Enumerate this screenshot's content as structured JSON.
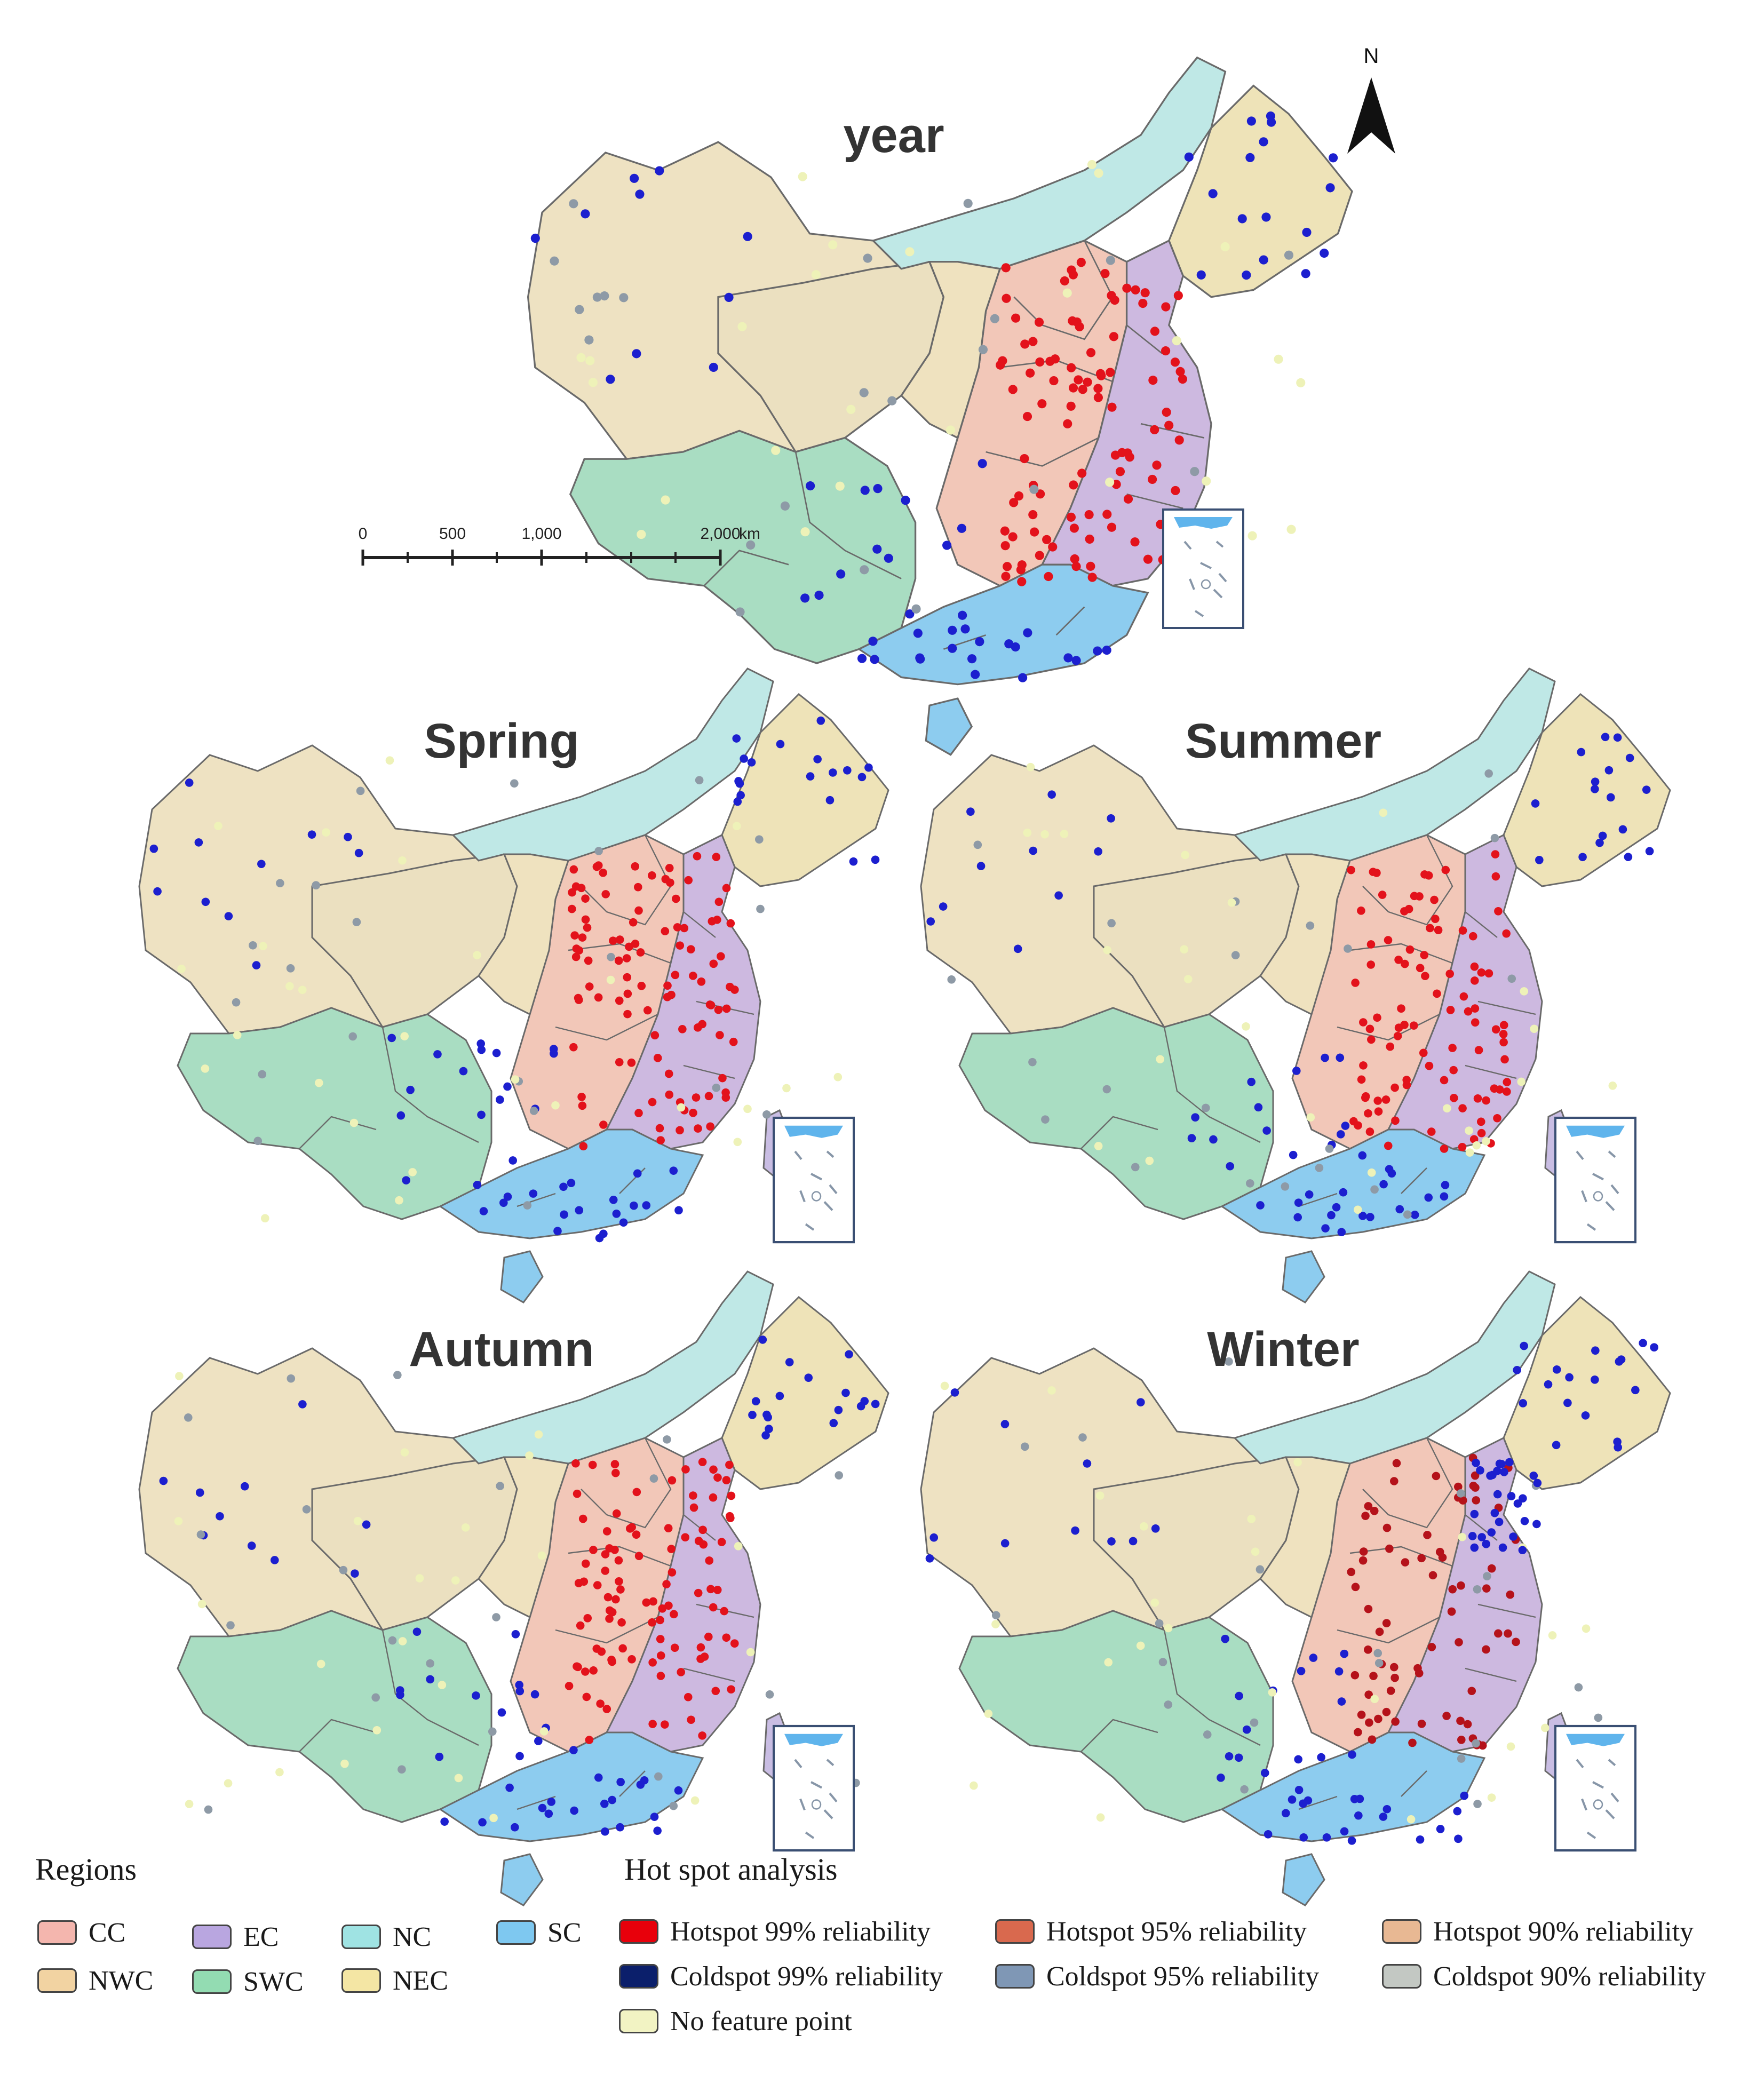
{
  "panels": [
    {
      "title": "year",
      "hot": 0.85,
      "cold": 0.55,
      "winter": false
    },
    {
      "title": "Spring",
      "hot": 0.85,
      "cold": 0.6,
      "winter": false
    },
    {
      "title": "Summer",
      "hot": 0.8,
      "cold": 0.55,
      "winter": false
    },
    {
      "title": "Autumn",
      "hot": 0.85,
      "cold": 0.55,
      "winter": false
    },
    {
      "title": "Winter",
      "hot": 0.6,
      "cold": 0.6,
      "winter": true
    }
  ],
  "north_arrow": {
    "label": "N"
  },
  "scale_bar": {
    "labels": [
      "0",
      "500",
      "1,000",
      "2,000",
      "km"
    ]
  },
  "legend": {
    "regions_title": "Regions",
    "regions": [
      {
        "code": "CC",
        "label": "CC",
        "color": "#f4b6ae"
      },
      {
        "code": "EC",
        "label": "EC",
        "color": "#b9a6e0"
      },
      {
        "code": "NC",
        "label": "NC",
        "color": "#9fe3e3"
      },
      {
        "code": "SC",
        "label": "SC",
        "color": "#7ec8f0"
      },
      {
        "code": "NWC",
        "label": "NWC",
        "color": "#f2d3a2"
      },
      {
        "code": "SWC",
        "label": "SWC",
        "color": "#93dcb2"
      },
      {
        "code": "NEC",
        "label": "NEC",
        "color": "#f4e6a4"
      }
    ],
    "hotspot_title": "Hot spot analysis",
    "hotspot_classes": [
      {
        "label": "Hotspot 99% reliability",
        "color": "#e8000b"
      },
      {
        "label": "Hotspot 95% reliability",
        "color": "#d9694e"
      },
      {
        "label": "Hotspot 90% reliability",
        "color": "#e8b893"
      },
      {
        "label": "Coldspot 99% reliability",
        "color": "#0b1f6b"
      },
      {
        "label": "Coldspot 95% reliability",
        "color": "#7f97b5"
      },
      {
        "label": "Coldspot 90% reliability",
        "color": "#c3c8c3"
      },
      {
        "label": "No feature point",
        "color": "#f2f3c3"
      }
    ]
  },
  "colors": {
    "region_border": "#6a6a6a",
    "point_hot": "#e3121b",
    "point_hot_dark": "#b5121a",
    "point_cold": "#1c1fcf",
    "point_grey": "#8e9aa6",
    "point_pale": "#eef2b8",
    "taiwan": "#c9bde3",
    "inset_sea": "#5fb4ec"
  }
}
